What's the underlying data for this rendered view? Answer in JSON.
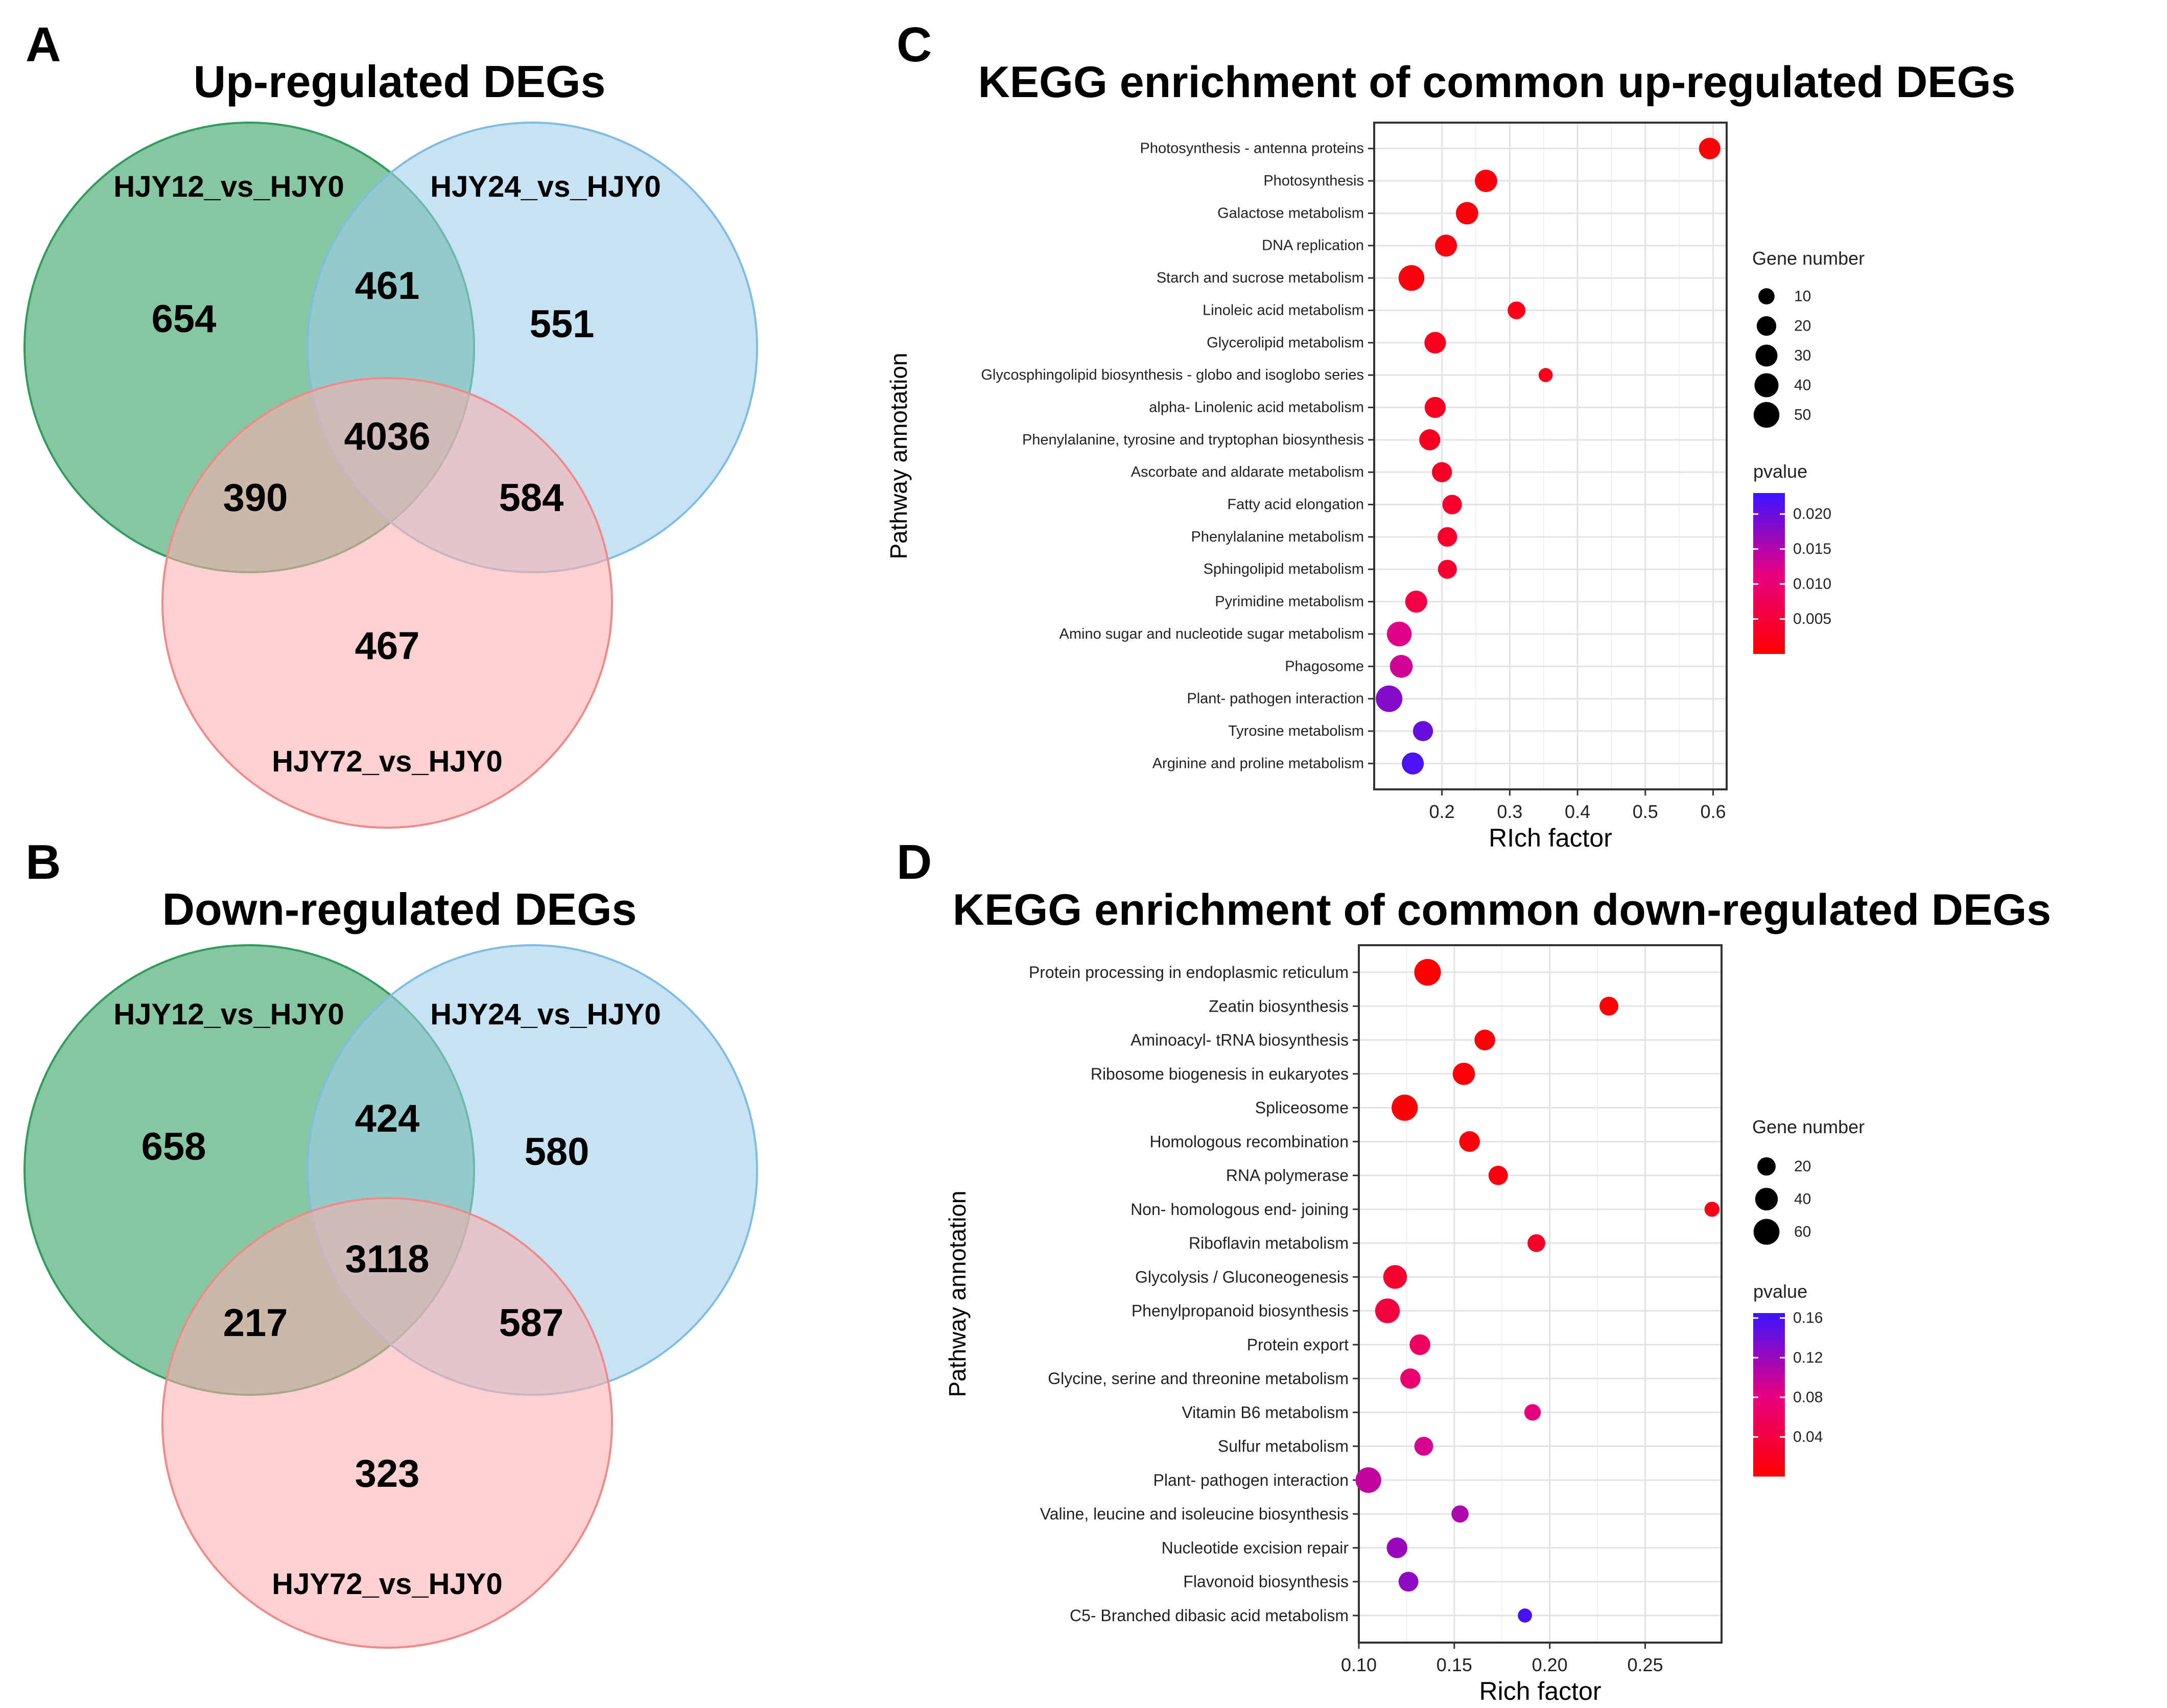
{
  "panels": [
    {
      "letter": "A",
      "title": "Up-regulated DEGs",
      "chart_data": {
        "type": "venn",
        "sets": [
          "HJY12_vs_HJY0",
          "HJY24_vs_HJY0",
          "HJY72_vs_HJY0"
        ],
        "regions": {
          "only_12": 654,
          "only_24": 551,
          "only_72": 467,
          "12_24": 461,
          "12_72": 390,
          "24_72": 584,
          "all": 4036
        },
        "colors": [
          "#2e9c5c",
          "#9ecde9",
          "#fdaeae"
        ]
      }
    },
    {
      "letter": "B",
      "title": "Down-regulated DEGs",
      "chart_data": {
        "type": "venn",
        "sets": [
          "HJY12_vs_HJY0",
          "HJY24_vs_HJY0",
          "HJY72_vs_HJY0"
        ],
        "regions": {
          "only_12": 658,
          "only_24": 580,
          "only_72": 323,
          "12_24": 424,
          "12_72": 217,
          "24_72": 587,
          "all": 3118
        },
        "colors": [
          "#2e9c5c",
          "#9ecde9",
          "#fdaeae"
        ]
      }
    },
    {
      "letter": "C",
      "title": "KEGG enrichment of common up-regulated DEGs",
      "chart_data": {
        "type": "scatter",
        "xlabel": "RIch factor",
        "ylabel": "Pathway annotation",
        "xlim": [
          0.1,
          0.62
        ],
        "xticks": [
          0.2,
          0.3,
          0.4,
          0.5,
          0.6
        ],
        "xtick_labels": [
          "0.2",
          "0.3",
          "0.4",
          "0.5",
          "0.6"
        ],
        "size_legend_title": "Gene number",
        "size_legend": [
          10,
          20,
          30,
          40,
          50
        ],
        "size_domain": [
          3,
          55
        ],
        "color_legend_title": "pvalue",
        "color_domain": [
          0,
          0.023
        ],
        "color_ticks": [
          0.005,
          0.01,
          0.015,
          0.02
        ],
        "color_tick_labels": [
          "0.005",
          "0.010",
          "0.015",
          "0.020"
        ],
        "points": [
          {
            "pathway": "Photosynthesis -  antenna proteins",
            "rich": 0.595,
            "genes": 28,
            "p": 0.0005
          },
          {
            "pathway": "Photosynthesis",
            "rich": 0.265,
            "genes": 32,
            "p": 0.001
          },
          {
            "pathway": "Galactose metabolism",
            "rich": 0.237,
            "genes": 32,
            "p": 0.001
          },
          {
            "pathway": "DNA replication",
            "rich": 0.206,
            "genes": 30,
            "p": 0.0015
          },
          {
            "pathway": "Starch and sucrose metabolism",
            "rich": 0.155,
            "genes": 50,
            "p": 0.0012
          },
          {
            "pathway": "Linoleic acid metabolism",
            "rich": 0.31,
            "genes": 14,
            "p": 0.002
          },
          {
            "pathway": "Glycerolipid metabolism",
            "rich": 0.19,
            "genes": 28,
            "p": 0.0025
          },
          {
            "pathway": "Glycosphingolipid biosynthesis -  globo and isoglobo series",
            "rich": 0.353,
            "genes": 6,
            "p": 0.0025
          },
          {
            "pathway": "alpha- Linolenic acid metabolism",
            "rich": 0.19,
            "genes": 26,
            "p": 0.003
          },
          {
            "pathway": "Phenylalanine, tyrosine and tryptophan biosynthesis",
            "rich": 0.182,
            "genes": 26,
            "p": 0.003
          },
          {
            "pathway": "Ascorbate and aldarate metabolism",
            "rich": 0.2,
            "genes": 22,
            "p": 0.0035
          },
          {
            "pathway": "Fatty acid elongation",
            "rich": 0.215,
            "genes": 20,
            "p": 0.004
          },
          {
            "pathway": "Phenylalanine metabolism",
            "rich": 0.208,
            "genes": 20,
            "p": 0.004
          },
          {
            "pathway": "Sphingolipid metabolism",
            "rich": 0.208,
            "genes": 18,
            "p": 0.0045
          },
          {
            "pathway": "Pyrimidine metabolism",
            "rich": 0.162,
            "genes": 30,
            "p": 0.006
          },
          {
            "pathway": "Amino sugar and nucleotide sugar metabolism",
            "rich": 0.137,
            "genes": 44,
            "p": 0.012
          },
          {
            "pathway": "Phagosome",
            "rich": 0.14,
            "genes": 34,
            "p": 0.013
          },
          {
            "pathway": "Plant- pathogen interaction",
            "rich": 0.122,
            "genes": 55,
            "p": 0.018
          },
          {
            "pathway": "Tyrosine metabolism",
            "rich": 0.172,
            "genes": 22,
            "p": 0.02
          },
          {
            "pathway": "Arginine and proline metabolism",
            "rich": 0.157,
            "genes": 30,
            "p": 0.022
          }
        ]
      }
    },
    {
      "letter": "D",
      "title": "KEGG enrichment of common down-regulated DEGs",
      "chart_data": {
        "type": "scatter",
        "xlabel": "Rich factor",
        "ylabel": "Pathway annotation",
        "xlim": [
          0.1,
          0.29
        ],
        "xticks": [
          0.1,
          0.15,
          0.2,
          0.25
        ],
        "xtick_labels": [
          "0.10",
          "0.15",
          "0.20",
          "0.25"
        ],
        "size_legend_title": "Gene number",
        "size_legend": [
          20,
          40,
          60
        ],
        "size_domain": [
          3,
          72
        ],
        "color_legend_title": "pvalue",
        "color_domain": [
          0,
          0.165
        ],
        "color_ticks": [
          0.04,
          0.08,
          0.12,
          0.16
        ],
        "color_tick_labels": [
          "0.04",
          "0.08",
          "0.12",
          "0.16"
        ],
        "points": [
          {
            "pathway": "Protein processing in endoplasmic reticulum",
            "rich": 0.136,
            "genes": 65,
            "p": 0.001
          },
          {
            "pathway": "Zeatin biosynthesis",
            "rich": 0.231,
            "genes": 22,
            "p": 0.002
          },
          {
            "pathway": "Aminoacyl- tRNA biosynthesis",
            "rich": 0.166,
            "genes": 30,
            "p": 0.003
          },
          {
            "pathway": "Ribosome biogenesis in eukaryotes",
            "rich": 0.155,
            "genes": 38,
            "p": 0.004
          },
          {
            "pathway": "Spliceosome",
            "rich": 0.124,
            "genes": 62,
            "p": 0.005
          },
          {
            "pathway": "Homologous recombination",
            "rich": 0.158,
            "genes": 30,
            "p": 0.008
          },
          {
            "pathway": "RNA polymerase",
            "rich": 0.173,
            "genes": 24,
            "p": 0.01
          },
          {
            "pathway": "Non- homologous end- joining",
            "rich": 0.285,
            "genes": 10,
            "p": 0.015
          },
          {
            "pathway": "Riboflavin metabolism",
            "rich": 0.193,
            "genes": 18,
            "p": 0.025
          },
          {
            "pathway": "Glycolysis / Gluconeogenesis",
            "rich": 0.119,
            "genes": 46,
            "p": 0.03
          },
          {
            "pathway": "Phenylpropanoid biosynthesis",
            "rich": 0.115,
            "genes": 52,
            "p": 0.04
          },
          {
            "pathway": "Protein export",
            "rich": 0.132,
            "genes": 30,
            "p": 0.06
          },
          {
            "pathway": "Glycine, serine and threonine metabolism",
            "rich": 0.127,
            "genes": 28,
            "p": 0.07
          },
          {
            "pathway": "Vitamin B6 metabolism",
            "rich": 0.191,
            "genes": 14,
            "p": 0.08
          },
          {
            "pathway": "Sulfur metabolism",
            "rich": 0.134,
            "genes": 22,
            "p": 0.09
          },
          {
            "pathway": "Plant- pathogen interaction",
            "rich": 0.105,
            "genes": 58,
            "p": 0.1
          },
          {
            "pathway": "Valine, leucine and isoleucine biosynthesis",
            "rich": 0.153,
            "genes": 16,
            "p": 0.11
          },
          {
            "pathway": "Nucleotide excision repair",
            "rich": 0.12,
            "genes": 30,
            "p": 0.12
          },
          {
            "pathway": "Flavonoid biosynthesis",
            "rich": 0.126,
            "genes": 26,
            "p": 0.125
          },
          {
            "pathway": "C5- Branched dibasic acid metabolism",
            "rich": 0.187,
            "genes": 8,
            "p": 0.16
          }
        ]
      }
    }
  ]
}
